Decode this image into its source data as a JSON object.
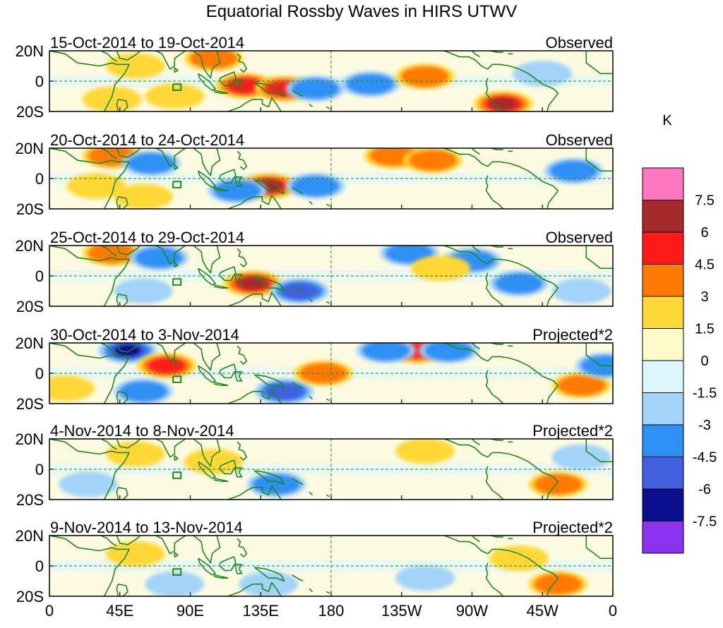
{
  "chart_data": {
    "type": "heatmap",
    "title": "Equatorial Rossby Waves in HIRS UTWV",
    "variable": "HIRS UTWV anomaly",
    "units": "K",
    "x_ticks": [
      "0",
      "45E",
      "90E",
      "135E",
      "180",
      "135W",
      "90W",
      "45W",
      "0"
    ],
    "y_ticks": [
      "20N",
      "0",
      "20S"
    ],
    "xlim": [
      0,
      360
    ],
    "ylim": [
      -20,
      20
    ],
    "colorbar": {
      "labels": [
        "7.5",
        "6",
        "4.5",
        "3",
        "1.5",
        "0",
        "-1.5",
        "-3",
        "-4.5",
        "-6",
        "-7.5"
      ],
      "colors": [
        "#ff77c0",
        "#a52a2a",
        "#ff1a1a",
        "#ff7a00",
        "#ffd835",
        "#fffbc8",
        "#dcf6fb",
        "#a3d3f8",
        "#2d90f5",
        "#4060e0",
        "#0b0f8f",
        "#8c33f0"
      ]
    },
    "panels": [
      {
        "date_range": "15-Oct-2014 to 19-Oct-2014",
        "kind": "Observed",
        "features": [
          {
            "lon": 105,
            "lat": 15,
            "value": 3.5
          },
          {
            "lon": 125,
            "lat": -3,
            "value": 4.5
          },
          {
            "lon": 150,
            "lat": -5,
            "value": 4.5
          },
          {
            "lon": 170,
            "lat": -5,
            "value": -3.5
          },
          {
            "lon": 205,
            "lat": -2,
            "value": -3
          },
          {
            "lon": 240,
            "lat": 3,
            "value": 3.5
          },
          {
            "lon": 290,
            "lat": -15,
            "value": 6
          },
          {
            "lon": 315,
            "lat": 5,
            "value": -2
          },
          {
            "lon": 55,
            "lat": 10,
            "value": 1.5
          },
          {
            "lon": 80,
            "lat": -10,
            "value": 2
          },
          {
            "lon": 40,
            "lat": -12,
            "value": 2
          }
        ]
      },
      {
        "date_range": "20-Oct-2014 to 24-Oct-2014",
        "kind": "Observed",
        "features": [
          {
            "lon": 40,
            "lat": 15,
            "value": 3.5
          },
          {
            "lon": 65,
            "lat": 10,
            "value": -3
          },
          {
            "lon": 140,
            "lat": -5,
            "value": 6
          },
          {
            "lon": 120,
            "lat": -8,
            "value": -4
          },
          {
            "lon": 170,
            "lat": -5,
            "value": -4
          },
          {
            "lon": 220,
            "lat": 15,
            "value": 3.5
          },
          {
            "lon": 245,
            "lat": 12,
            "value": 3
          },
          {
            "lon": 335,
            "lat": 5,
            "value": -3
          },
          {
            "lon": 30,
            "lat": -5,
            "value": 2
          },
          {
            "lon": 60,
            "lat": -12,
            "value": 2.5
          }
        ]
      },
      {
        "date_range": "25-Oct-2014 to 29-Oct-2014",
        "kind": "Observed",
        "features": [
          {
            "lon": 40,
            "lat": 15,
            "value": 3.5
          },
          {
            "lon": 70,
            "lat": 12,
            "value": -3.5
          },
          {
            "lon": 130,
            "lat": -5,
            "value": 6
          },
          {
            "lon": 160,
            "lat": -10,
            "value": -4.5
          },
          {
            "lon": 60,
            "lat": -10,
            "value": -2
          },
          {
            "lon": 230,
            "lat": 15,
            "value": -3
          },
          {
            "lon": 270,
            "lat": 10,
            "value": -3
          },
          {
            "lon": 300,
            "lat": -5,
            "value": -3
          },
          {
            "lon": 250,
            "lat": 5,
            "value": 2
          },
          {
            "lon": 340,
            "lat": -10,
            "value": -2
          }
        ]
      },
      {
        "date_range": "30-Oct-2014 to 3-Nov-2014",
        "kind": "Projected*2",
        "features": [
          {
            "lon": 50,
            "lat": 15,
            "value": -6
          },
          {
            "lon": 75,
            "lat": 5,
            "value": 4.5
          },
          {
            "lon": 150,
            "lat": -12,
            "value": -5
          },
          {
            "lon": 60,
            "lat": -12,
            "value": -3
          },
          {
            "lon": 235,
            "lat": 15,
            "value": 5
          },
          {
            "lon": 215,
            "lat": 15,
            "value": -3
          },
          {
            "lon": 255,
            "lat": 15,
            "value": -3
          },
          {
            "lon": 340,
            "lat": -8,
            "value": 4
          },
          {
            "lon": 175,
            "lat": 0,
            "value": 3
          },
          {
            "lon": 10,
            "lat": -10,
            "value": 2
          },
          {
            "lon": 355,
            "lat": 5,
            "value": -3
          }
        ]
      },
      {
        "date_range": "4-Nov-2014 to 8-Nov-2014",
        "kind": "Projected*2",
        "features": [
          {
            "lon": 55,
            "lat": 10,
            "value": 2.5
          },
          {
            "lon": 145,
            "lat": -10,
            "value": -3
          },
          {
            "lon": 325,
            "lat": -10,
            "value": 4
          },
          {
            "lon": 25,
            "lat": -10,
            "value": -1.5
          },
          {
            "lon": 105,
            "lat": 5,
            "value": 1.5
          },
          {
            "lon": 240,
            "lat": 12,
            "value": 1.5
          },
          {
            "lon": 340,
            "lat": 8,
            "value": -2
          }
        ]
      },
      {
        "date_range": "9-Nov-2014 to 13-Nov-2014",
        "kind": "Projected*2",
        "features": [
          {
            "lon": 55,
            "lat": 8,
            "value": 1.5
          },
          {
            "lon": 140,
            "lat": -12,
            "value": -2
          },
          {
            "lon": 325,
            "lat": -12,
            "value": 3
          },
          {
            "lon": 80,
            "lat": -12,
            "value": -1.5
          },
          {
            "lon": 240,
            "lat": -8,
            "value": -1.5
          },
          {
            "lon": 300,
            "lat": 5,
            "value": 1.5
          }
        ]
      }
    ]
  }
}
